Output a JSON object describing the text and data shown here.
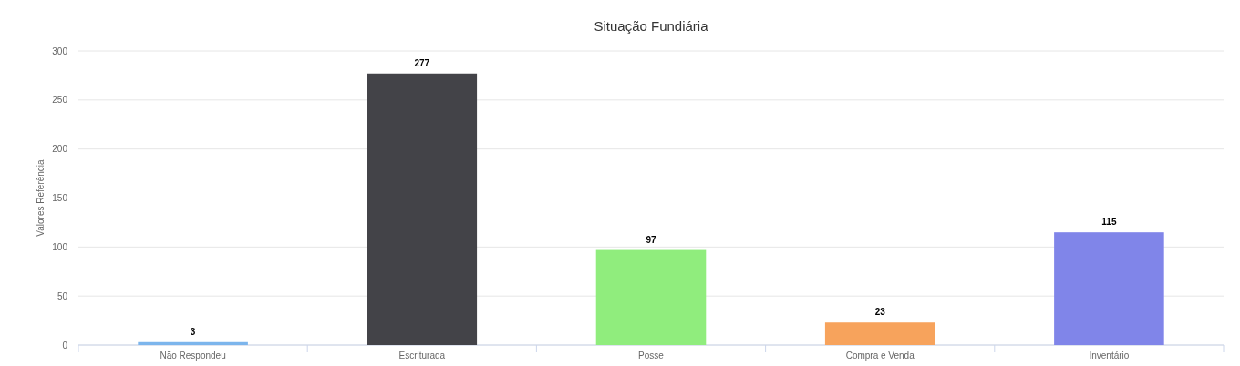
{
  "chart_data": {
    "type": "bar",
    "title": "Situação Fundiária",
    "ylabel": "Valores Referência",
    "categories": [
      "Não Respondeu",
      "Escriturada",
      "Posse",
      "Compra e Venda",
      "Inventário"
    ],
    "values": [
      3,
      277,
      97,
      23,
      115
    ],
    "colors": [
      "#7cb5ec",
      "#434348",
      "#90ed7d",
      "#f7a35c",
      "#8085e9"
    ],
    "ylim": [
      0,
      300
    ],
    "yticks": [
      0,
      50,
      100,
      150,
      200,
      250,
      300
    ],
    "grid": "y",
    "data_labels": true
  }
}
